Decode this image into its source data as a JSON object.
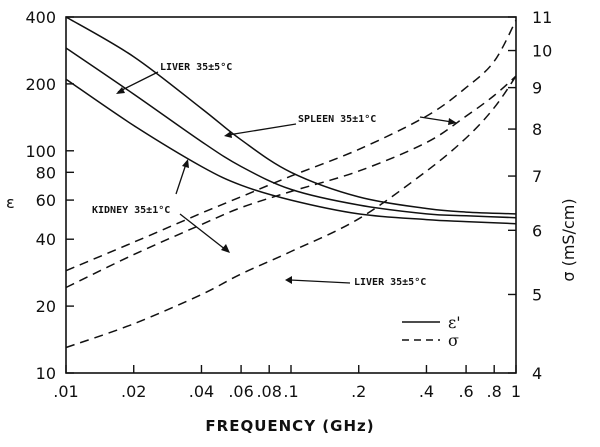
{
  "chart_data": {
    "type": "line",
    "xlabel": "FREQUENCY (GHz)",
    "x_scale": "log",
    "xlim": [
      0.01,
      1
    ],
    "x_ticks": [
      {
        "value": 0.01,
        "label": ".01"
      },
      {
        "value": 0.02,
        "label": ".02"
      },
      {
        "value": 0.04,
        "label": ".04"
      },
      {
        "value": 0.06,
        "label": ".06"
      },
      {
        "value": 0.08,
        "label": ".08"
      },
      {
        "value": 0.1,
        "label": ".1"
      },
      {
        "value": 0.2,
        "label": ".2"
      },
      {
        "value": 0.4,
        "label": ".4"
      },
      {
        "value": 0.6,
        "label": ".6"
      },
      {
        "value": 0.8,
        "label": ".8"
      },
      {
        "value": 1,
        "label": "1"
      }
    ],
    "left_axis": {
      "label": "ε",
      "scale": "log",
      "lim": [
        10,
        400
      ],
      "ticks": [
        {
          "value": 10,
          "label": "10"
        },
        {
          "value": 20,
          "label": "20"
        },
        {
          "value": 40,
          "label": "40"
        },
        {
          "value": 60,
          "label": "60"
        },
        {
          "value": 80,
          "label": "80"
        },
        {
          "value": 100,
          "label": "100"
        },
        {
          "value": 200,
          "label": "200"
        },
        {
          "value": 400,
          "label": "400"
        }
      ]
    },
    "right_axis": {
      "label": "σ (mS/cm)",
      "scale": "log",
      "lim": [
        4,
        11
      ],
      "ticks": [
        {
          "value": 4,
          "label": "4"
        },
        {
          "value": 5,
          "label": "5"
        },
        {
          "value": 6,
          "label": "6"
        },
        {
          "value": 7,
          "label": "7"
        },
        {
          "value": 8,
          "label": "8"
        },
        {
          "value": 9,
          "label": "9"
        },
        {
          "value": 10,
          "label": "10"
        },
        {
          "value": 11,
          "label": "11"
        }
      ]
    },
    "series": [
      {
        "name": "Liver 35±5°C ε'",
        "quantity": "epsilon",
        "axis": "left",
        "style": "solid",
        "x": [
          0.01,
          0.02,
          0.04,
          0.06,
          0.1,
          0.2,
          0.4,
          0.6,
          1
        ],
        "y": [
          400,
          265,
          155,
          112,
          80,
          62,
          55,
          53,
          52
        ]
      },
      {
        "name": "Spleen 35±1°C ε'",
        "quantity": "epsilon",
        "axis": "left",
        "style": "solid",
        "x": [
          0.01,
          0.02,
          0.04,
          0.06,
          0.1,
          0.2,
          0.4,
          0.6,
          1
        ],
        "y": [
          290,
          180,
          110,
          85,
          67,
          57,
          52,
          51,
          50
        ]
      },
      {
        "name": "Kidney 35±1°C ε'",
        "quantity": "epsilon",
        "axis": "left",
        "style": "solid",
        "x": [
          0.01,
          0.02,
          0.04,
          0.06,
          0.1,
          0.2,
          0.4,
          0.6,
          1
        ],
        "y": [
          210,
          130,
          85,
          70,
          60,
          52,
          49,
          48,
          47
        ]
      },
      {
        "name": "Spleen 35±1°C σ",
        "quantity": "sigma",
        "axis": "right",
        "style": "dashed",
        "x": [
          0.01,
          0.02,
          0.04,
          0.06,
          0.1,
          0.2,
          0.4,
          0.6,
          0.8,
          1
        ],
        "y": [
          5.35,
          5.8,
          6.3,
          6.6,
          7.0,
          7.55,
          8.3,
          9.0,
          9.7,
          10.9
        ]
      },
      {
        "name": "Kidney 35±1°C σ",
        "quantity": "sigma",
        "axis": "right",
        "style": "dashed",
        "x": [
          0.01,
          0.02,
          0.04,
          0.06,
          0.1,
          0.2,
          0.4,
          0.6,
          0.8,
          1
        ],
        "y": [
          5.1,
          5.6,
          6.1,
          6.4,
          6.7,
          7.1,
          7.7,
          8.3,
          8.8,
          9.3
        ]
      },
      {
        "name": "Liver 35±5°C σ",
        "quantity": "sigma",
        "axis": "right",
        "style": "dashed",
        "x": [
          0.01,
          0.02,
          0.04,
          0.06,
          0.1,
          0.2,
          0.4,
          0.6,
          0.8,
          1
        ],
        "y": [
          4.3,
          4.6,
          5.0,
          5.3,
          5.65,
          6.2,
          7.1,
          7.8,
          8.5,
          9.3
        ]
      }
    ],
    "annotations": [
      {
        "text": "LIVER 35±5°C",
        "target": "Liver 35±5°C ε'"
      },
      {
        "text": "SPLEEN 35±1°C",
        "target": "Spleen 35±1°C σ"
      },
      {
        "text": "KIDNEY 35±1°C",
        "target": "Kidney 35±1°C σ"
      },
      {
        "text": "LIVER 35±5°C",
        "target": "Liver 35±5°C σ"
      }
    ],
    "legend": {
      "position": "bottom-right",
      "entries": [
        {
          "label": "ε'",
          "style": "solid"
        },
        {
          "label": "σ",
          "style": "dashed"
        }
      ]
    }
  }
}
